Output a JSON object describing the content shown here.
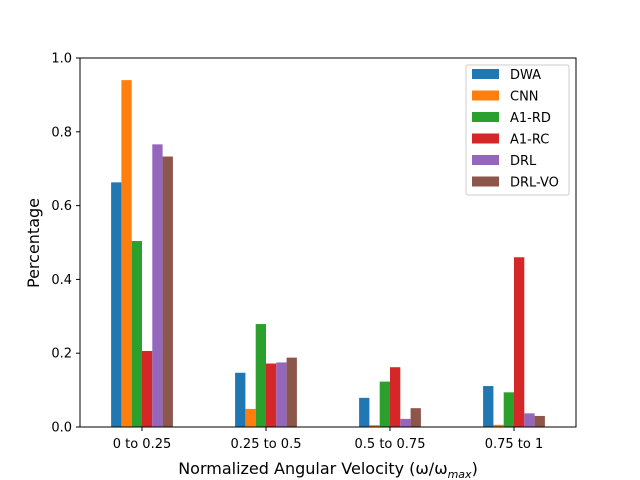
{
  "chart_data": {
    "type": "bar",
    "categories": [
      "0 to 0.25",
      "0.25 to 0.5",
      "0.5 to 0.75",
      "0.75 to 1"
    ],
    "series": [
      {
        "name": "DWA",
        "color": "#1f77b4",
        "values": [
          0.663,
          0.147,
          0.079,
          0.111
        ]
      },
      {
        "name": "CNN",
        "color": "#ff7f0e",
        "values": [
          0.94,
          0.049,
          0.005,
          0.006
        ]
      },
      {
        "name": "A1-RD",
        "color": "#2ca02c",
        "values": [
          0.504,
          0.279,
          0.123,
          0.094
        ]
      },
      {
        "name": "A1-RC",
        "color": "#d62728",
        "values": [
          0.206,
          0.172,
          0.162,
          0.46
        ]
      },
      {
        "name": "DRL",
        "color": "#9467bd",
        "values": [
          0.766,
          0.175,
          0.022,
          0.037
        ]
      },
      {
        "name": "DRL-VO",
        "color": "#8c564b",
        "values": [
          0.733,
          0.188,
          0.051,
          0.03
        ]
      }
    ],
    "xlabel": "Normalized Angular Velocity (ω/ω",
    "xlabel_sub": "max",
    "xlabel_close": ")",
    "ylabel": "Percentage",
    "ylim": [
      0,
      1.0
    ],
    "yticks": [
      "0.0",
      "0.2",
      "0.4",
      "0.6",
      "0.8",
      "1.0"
    ],
    "legend_position": "top-right",
    "grid": false
  }
}
